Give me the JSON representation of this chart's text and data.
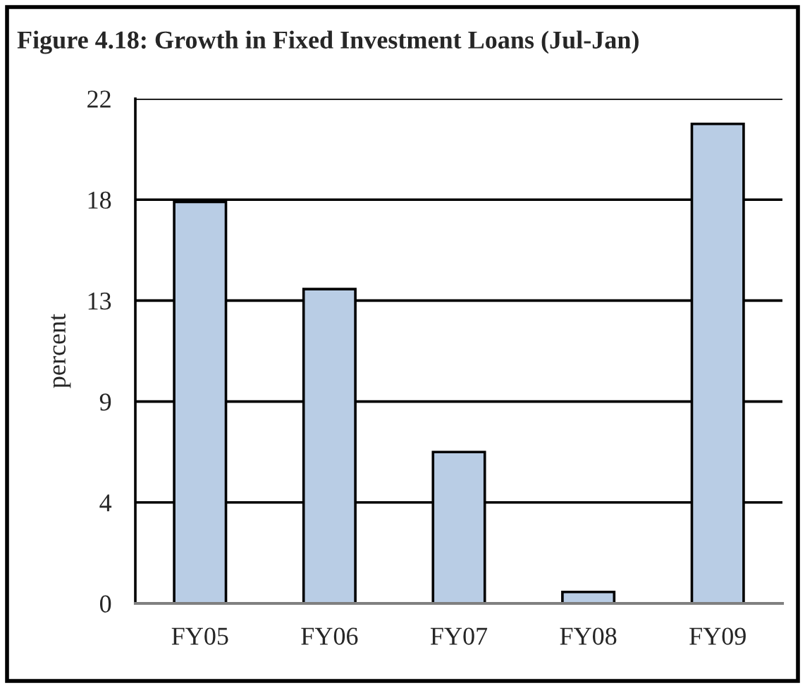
{
  "chart_data": {
    "type": "bar",
    "title": "Figure 4.18: Growth in Fixed Investment Loans (Jul-Jan)",
    "ylabel": "percent",
    "categories": [
      "FY05",
      "FY06",
      "FY07",
      "FY08",
      "FY09"
    ],
    "values": [
      17.5,
      13.7,
      6.6,
      0.5,
      20.9
    ],
    "color": "#b9cde5",
    "ylim": [
      0,
      22
    ],
    "yticks": [
      0,
      {
        "value": 4.4,
        "label": "4"
      },
      {
        "value": 8.8,
        "label": "9"
      },
      {
        "value": 13.2,
        "label": "13"
      },
      {
        "value": 17.6,
        "label": "18"
      },
      22
    ],
    "grid": "y",
    "legend": false
  }
}
